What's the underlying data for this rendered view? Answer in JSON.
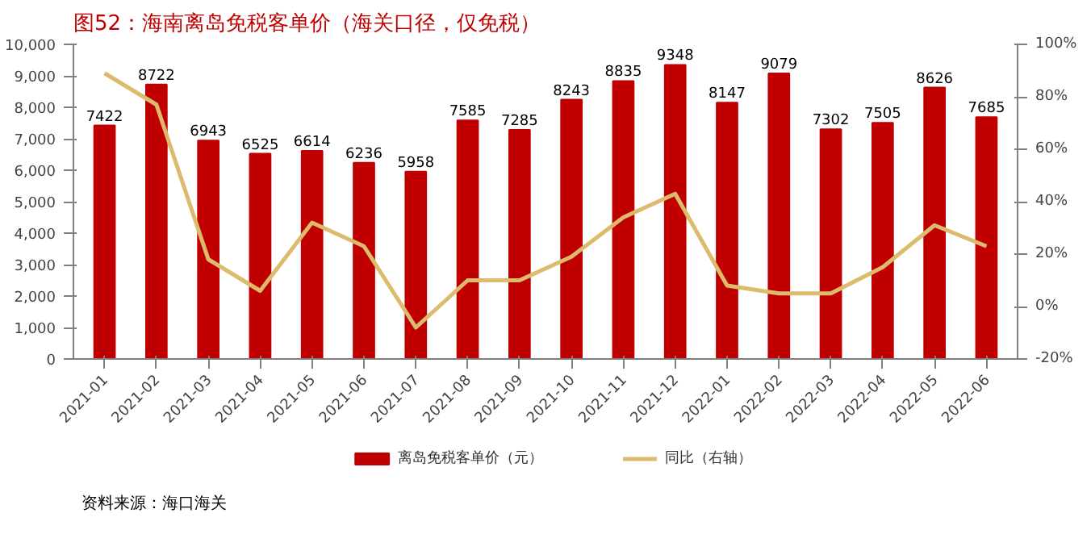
{
  "chart_data": {
    "type": "bar",
    "title": "图52：海南离岛免税客单价（海关口径，仅免税）",
    "categories": [
      "2021-01",
      "2021-02",
      "2021-03",
      "2021-04",
      "2021-05",
      "2021-06",
      "2021-07",
      "2021-08",
      "2021-09",
      "2021-10",
      "2021-11",
      "2021-12",
      "2022-01",
      "2022-02",
      "2022-03",
      "2022-04",
      "2022-05",
      "2022-06"
    ],
    "series": [
      {
        "name": "离岛免税客单价（元）",
        "color": "#c00000",
        "values": [
          7422,
          8722,
          6943,
          6525,
          6614,
          6236,
          5958,
          7585,
          7285,
          8243,
          8835,
          9348,
          8147,
          9079,
          7302,
          7505,
          8626,
          7685
        ],
        "value_labels": [
          "7422",
          "8722",
          "6943",
          "6525",
          "6614",
          "6236",
          "5958",
          "7585",
          "7285",
          "8243",
          "8835",
          "9348",
          "8147",
          "9079",
          "7302",
          "7505",
          "8626",
          "7685"
        ]
      },
      {
        "name": "同比（右轴）",
        "color": "#dcbc6c",
        "type": "line",
        "axis": "y2",
        "values": [
          89,
          77,
          18,
          6,
          32,
          23,
          -8,
          10,
          10,
          19,
          34,
          43,
          8,
          5,
          5,
          15,
          31,
          23
        ]
      }
    ],
    "ylim": [
      0,
      10000
    ],
    "yticks": [
      0,
      {
        "value": 1000,
        "label": "1,000"
      },
      {
        "value": 2000,
        "label": "2,000"
      },
      {
        "value": 3000,
        "label": "3,000"
      },
      {
        "value": 4000,
        "label": "4,000"
      },
      {
        "value": 5000,
        "label": "5,000"
      },
      {
        "value": 6000,
        "label": "6,000"
      },
      {
        "value": 7000,
        "label": "7,000"
      },
      {
        "value": 8000,
        "label": "8,000"
      },
      {
        "value": 9000,
        "label": "9,000"
      },
      {
        "value": 10000,
        "label": "10,000"
      }
    ],
    "y2lim": [
      -20,
      100
    ],
    "y2ticks": [
      {
        "value": -20,
        "label": "-20%"
      },
      {
        "value": 0,
        "label": "0%"
      },
      {
        "value": 20,
        "label": "20%"
      },
      {
        "value": 40,
        "label": "40%"
      },
      {
        "value": 60,
        "label": "60%"
      },
      {
        "value": 80,
        "label": "80%"
      },
      {
        "value": 100,
        "label": "100%"
      }
    ],
    "grid": false,
    "legend": "bottom",
    "annotations": [
      "资料来源：海口海关"
    ]
  }
}
